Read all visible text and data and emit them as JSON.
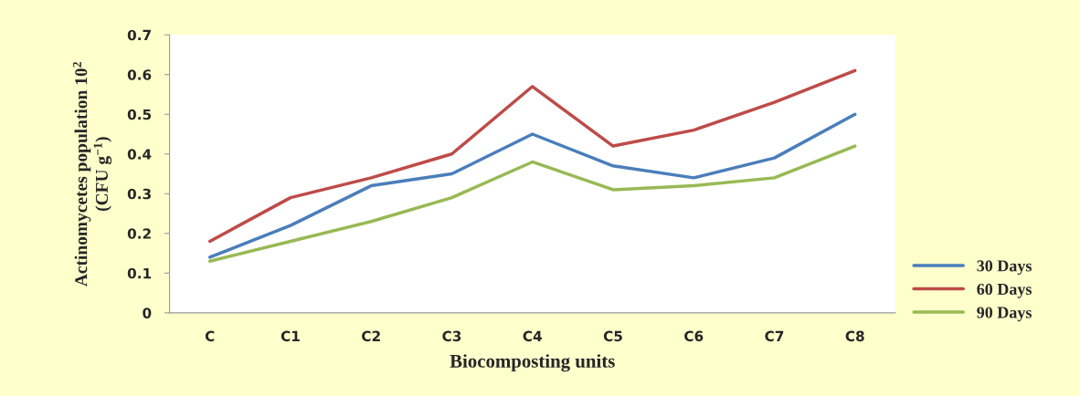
{
  "chart_data": {
    "type": "line",
    "xlabel": "Biocomposting units",
    "ylabel": "Actinomycetes population 10$^{2}$\n(CFU g$^{−1}$)",
    "categories": [
      "C",
      "C1",
      "C2",
      "C3",
      "C4",
      "C5",
      "C6",
      "C7",
      "C8"
    ],
    "series": [
      {
        "name": "30 Days",
        "color": "#4a7ebb",
        "values": [
          0.14,
          0.22,
          0.32,
          0.35,
          0.45,
          0.37,
          0.34,
          0.39,
          0.5
        ]
      },
      {
        "name": "60 Days",
        "color": "#be4b48",
        "values": [
          0.18,
          0.29,
          0.34,
          0.4,
          0.57,
          0.42,
          0.46,
          0.53,
          0.61
        ]
      },
      {
        "name": "90 Days",
        "color": "#98b954",
        "values": [
          0.13,
          0.18,
          0.23,
          0.29,
          0.38,
          0.31,
          0.32,
          0.34,
          0.42
        ]
      }
    ],
    "ylim": [
      0,
      0.7
    ],
    "yticks": [
      {
        "value": 0,
        "label": "0"
      },
      0.1,
      0.2,
      0.3,
      0.4,
      0.5,
      0.6,
      0.7
    ],
    "grid": false,
    "legend": "right",
    "marker": "none",
    "line_style": "solid"
  }
}
